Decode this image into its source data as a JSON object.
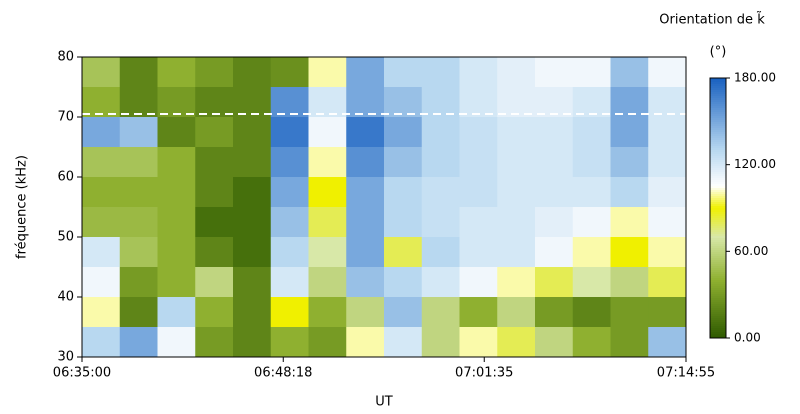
{
  "chart_data": {
    "type": "heatmap",
    "title": "Orientation de k̃",
    "colorbar_label": "(°)",
    "xlabel": "UT",
    "ylabel": "fréquence (kHz)",
    "xlim": [
      "06:35:00",
      "07:14:55"
    ],
    "xticks": [
      "06:35:00",
      "06:48:18",
      "07:01:35",
      "07:14:55"
    ],
    "ylim": [
      30,
      80
    ],
    "yticks": [
      30,
      40,
      50,
      60,
      70,
      80
    ],
    "y": [
      77.5,
      72.5,
      67.5,
      62.5,
      57.5,
      52.5,
      47.5,
      42.5,
      37.5,
      32.5
    ],
    "z": [
      [
        50,
        20,
        40,
        30,
        20,
        25,
        100,
        150,
        130,
        130,
        120,
        115,
        110,
        110,
        140,
        110
      ],
      [
        40,
        20,
        30,
        20,
        20,
        160,
        120,
        150,
        140,
        130,
        120,
        115,
        115,
        120,
        150,
        120
      ],
      [
        150,
        140,
        20,
        30,
        20,
        170,
        110,
        170,
        150,
        130,
        125,
        120,
        120,
        125,
        150,
        120
      ],
      [
        50,
        50,
        40,
        20,
        20,
        160,
        100,
        160,
        140,
        130,
        125,
        120,
        120,
        125,
        140,
        120
      ],
      [
        40,
        40,
        40,
        20,
        10,
        150,
        90,
        150,
        130,
        125,
        125,
        120,
        120,
        120,
        130,
        115
      ],
      [
        45,
        45,
        40,
        10,
        10,
        140,
        80,
        150,
        130,
        125,
        120,
        120,
        115,
        110,
        100,
        110
      ],
      [
        120,
        50,
        40,
        20,
        10,
        130,
        70,
        150,
        80,
        130,
        120,
        120,
        110,
        100,
        90,
        100
      ],
      [
        110,
        30,
        40,
        60,
        20,
        120,
        60,
        140,
        130,
        120,
        110,
        100,
        80,
        70,
        60,
        80
      ],
      [
        100,
        20,
        130,
        40,
        20,
        90,
        40,
        60,
        140,
        60,
        40,
        60,
        30,
        20,
        30,
        30
      ],
      [
        130,
        150,
        110,
        30,
        20,
        40,
        30,
        100,
        120,
        60,
        100,
        80,
        60,
        40,
        30,
        140
      ]
    ],
    "zlim": [
      0,
      180
    ],
    "zticks": [
      {
        "value": 0,
        "label": "0.00"
      },
      {
        "value": 60,
        "label": "60.00"
      },
      {
        "value": 120,
        "label": "120.00"
      },
      {
        "value": 180,
        "label": "180.00"
      }
    ],
    "colorscale": [
      [
        0,
        "#2e5a00"
      ],
      [
        40,
        "#8fb030"
      ],
      [
        70,
        "#d8e8a8"
      ],
      [
        90,
        "#f0f000"
      ],
      [
        105,
        "#ffffff"
      ],
      [
        130,
        "#b8d8f0"
      ],
      [
        180,
        "#1860c0"
      ]
    ],
    "hline": {
      "value": 70.5,
      "color": "#ffffff"
    }
  }
}
